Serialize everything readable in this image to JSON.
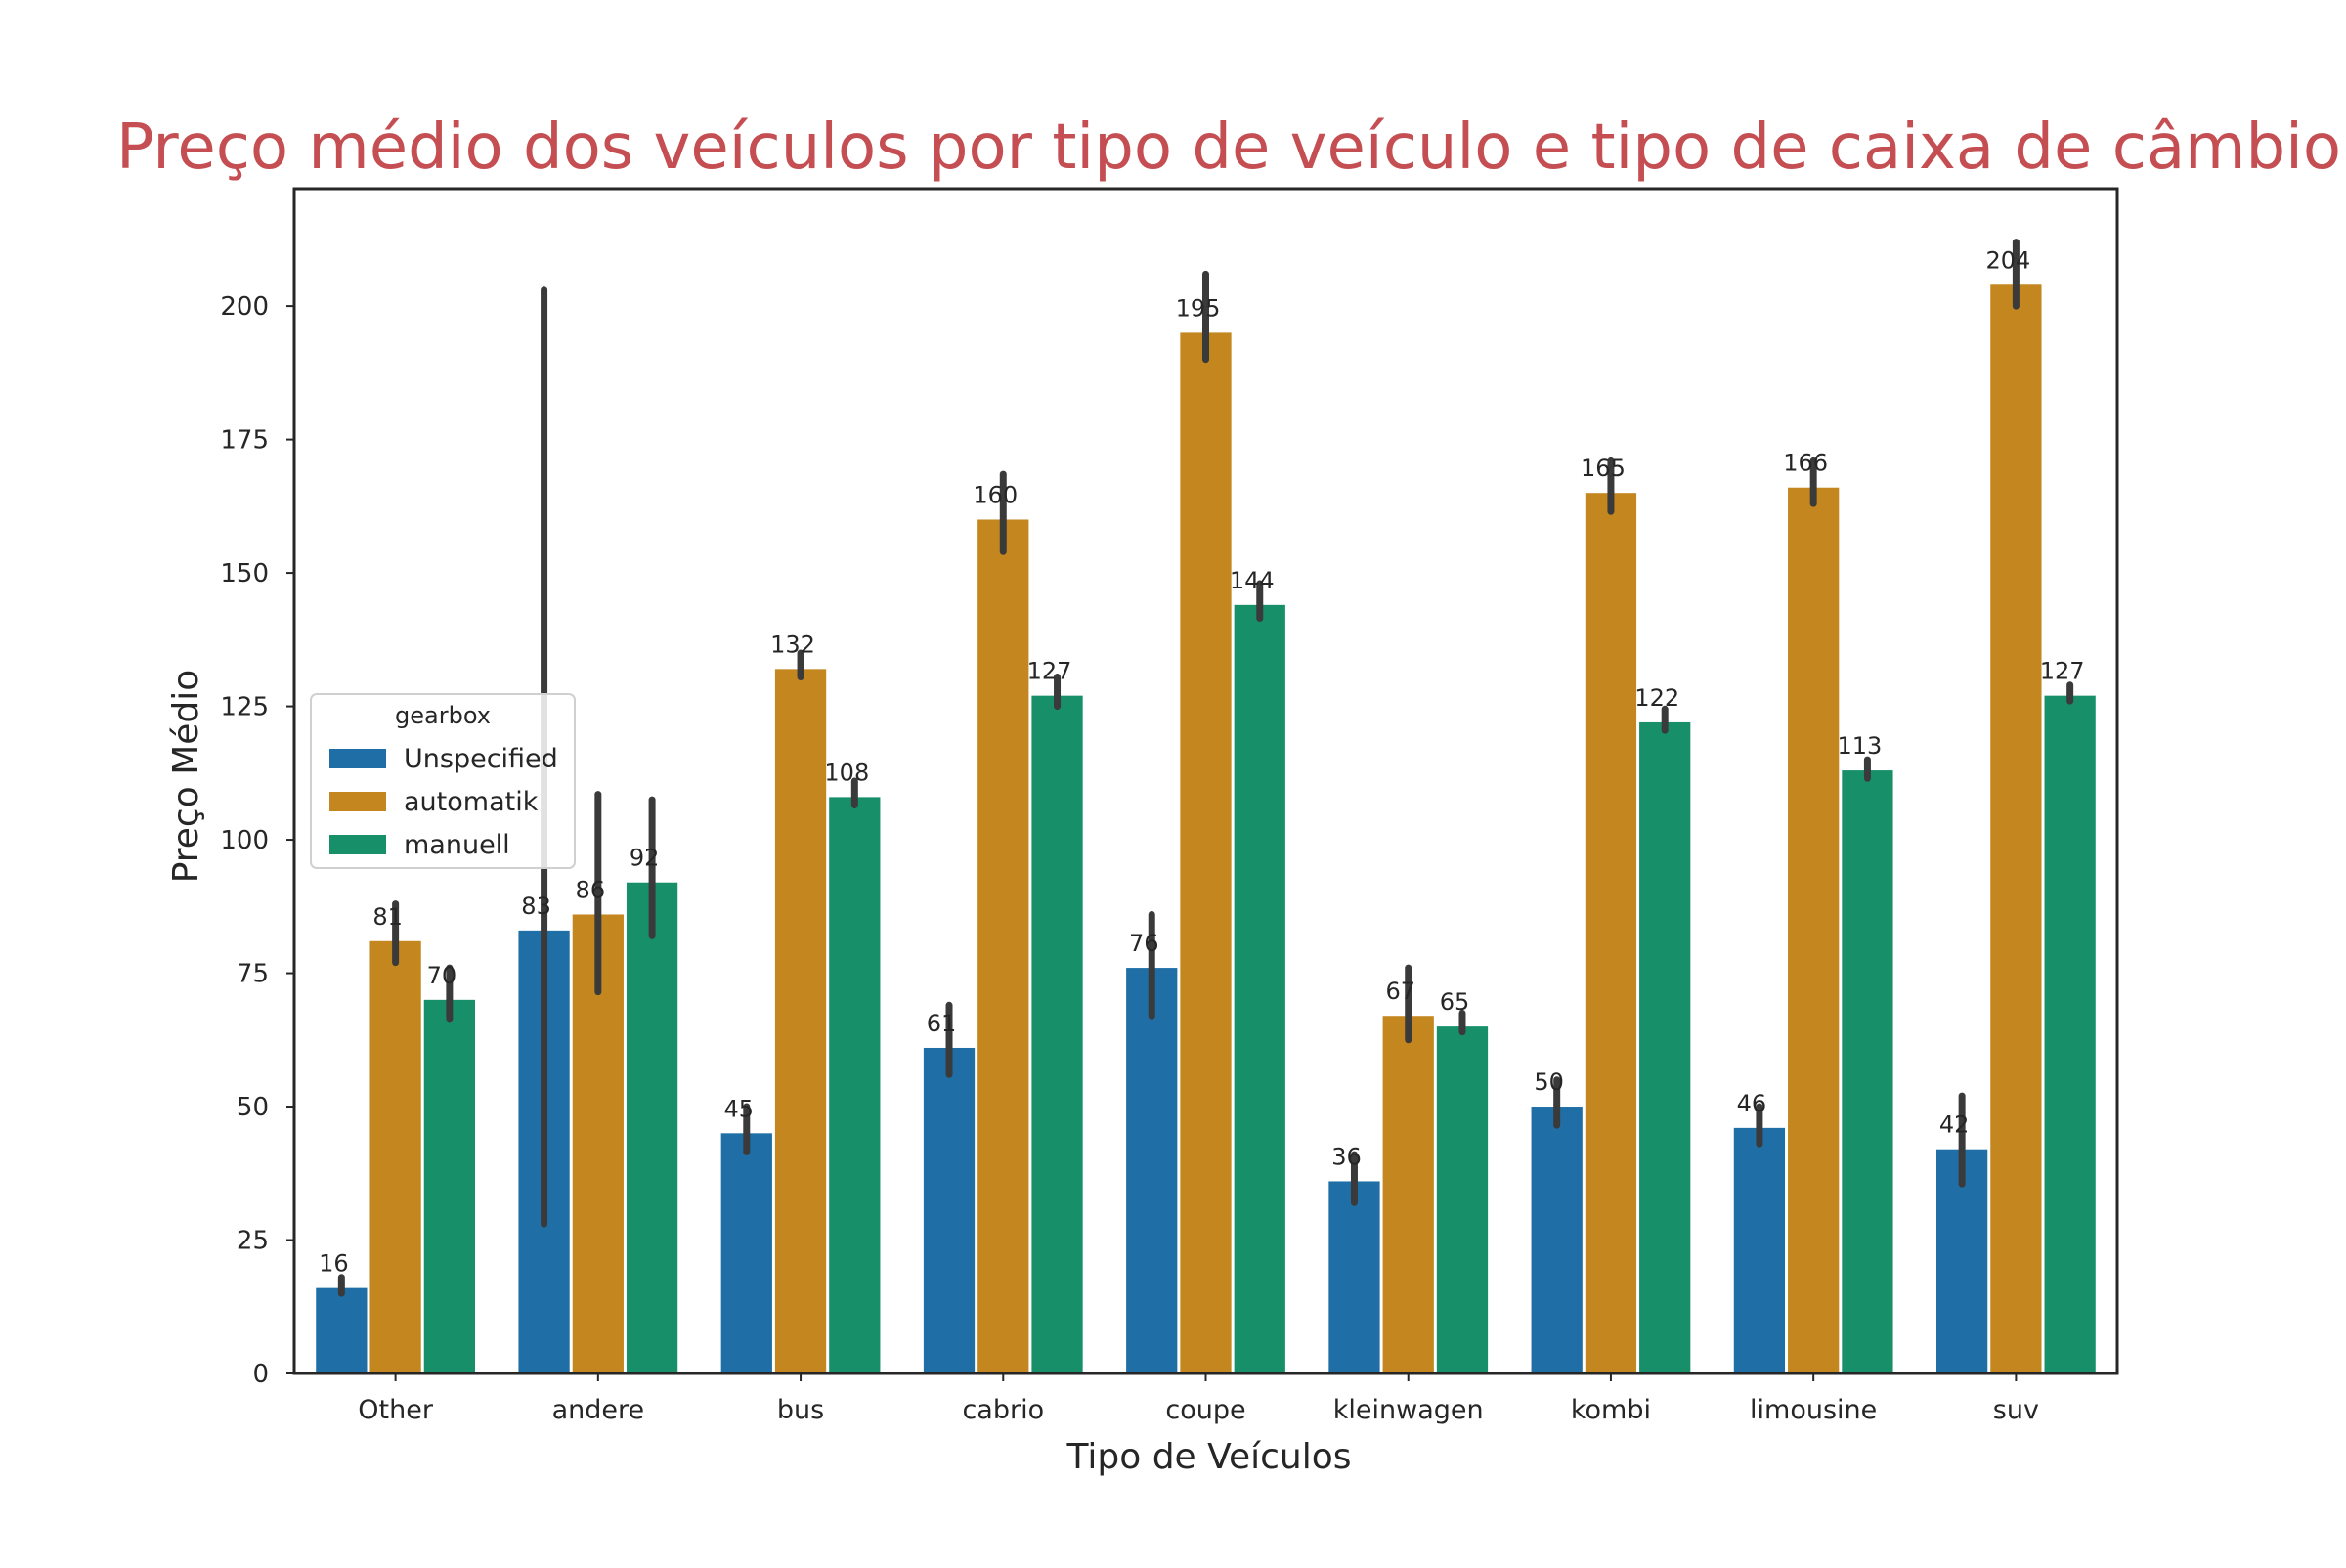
{
  "chart_data": {
    "type": "bar",
    "title": "Preço médio dos veículos por tipo de veículo e tipo de caixa de câmbio",
    "xlabel": "Tipo de Veículos",
    "ylabel": "Preço Médio",
    "ylim": [
      0,
      222
    ],
    "yticks": [
      0,
      25,
      50,
      75,
      100,
      125,
      150,
      175,
      200
    ],
    "grid": false,
    "legend": {
      "title": "gearbox",
      "placement": "center-left"
    },
    "categories": [
      "Other",
      "andere",
      "bus",
      "cabrio",
      "coupe",
      "kleinwagen",
      "kombi",
      "limousine",
      "suv"
    ],
    "series": [
      {
        "name": "Unspecified",
        "color": "#1f6fa6",
        "values": [
          16,
          83,
          45,
          61,
          76,
          36,
          50,
          46,
          42
        ],
        "labels": [
          "16",
          "83",
          "45",
          "61",
          "76",
          "36",
          "50",
          "46",
          "42"
        ],
        "error_low": [
          15,
          28,
          41.5,
          56,
          67,
          32,
          46.5,
          43,
          35.5
        ],
        "error_high": [
          18,
          203,
          50,
          69,
          86,
          41,
          55,
          50,
          52
        ]
      },
      {
        "name": "automatik",
        "color": "#c4861e",
        "values": [
          81,
          86,
          132,
          160,
          195,
          67,
          165,
          166,
          204
        ],
        "labels": [
          "81",
          "86",
          "132",
          "160",
          "195",
          "67",
          "165",
          "166",
          "204"
        ],
        "error_low": [
          77,
          71.5,
          130.5,
          154,
          190,
          62.5,
          161.5,
          163,
          200
        ],
        "error_high": [
          88,
          108.5,
          135,
          168.5,
          206,
          76,
          171,
          171,
          212
        ]
      },
      {
        "name": "manuell",
        "color": "#17906a",
        "values": [
          70,
          92,
          108,
          127,
          144,
          65,
          122,
          113,
          127
        ],
        "labels": [
          "70",
          "92",
          "108",
          "127",
          "144",
          "65",
          "122",
          "113",
          "127"
        ],
        "error_low": [
          66.5,
          82,
          106.5,
          125,
          141.5,
          64,
          120.5,
          111.5,
          126
        ],
        "error_high": [
          76,
          107.5,
          111,
          130.5,
          148,
          67.5,
          124.5,
          115,
          129
        ]
      }
    ],
    "colors": {
      "title": "#c44e52",
      "axis": "#262626",
      "errorbar": "#3a3a3a"
    }
  }
}
